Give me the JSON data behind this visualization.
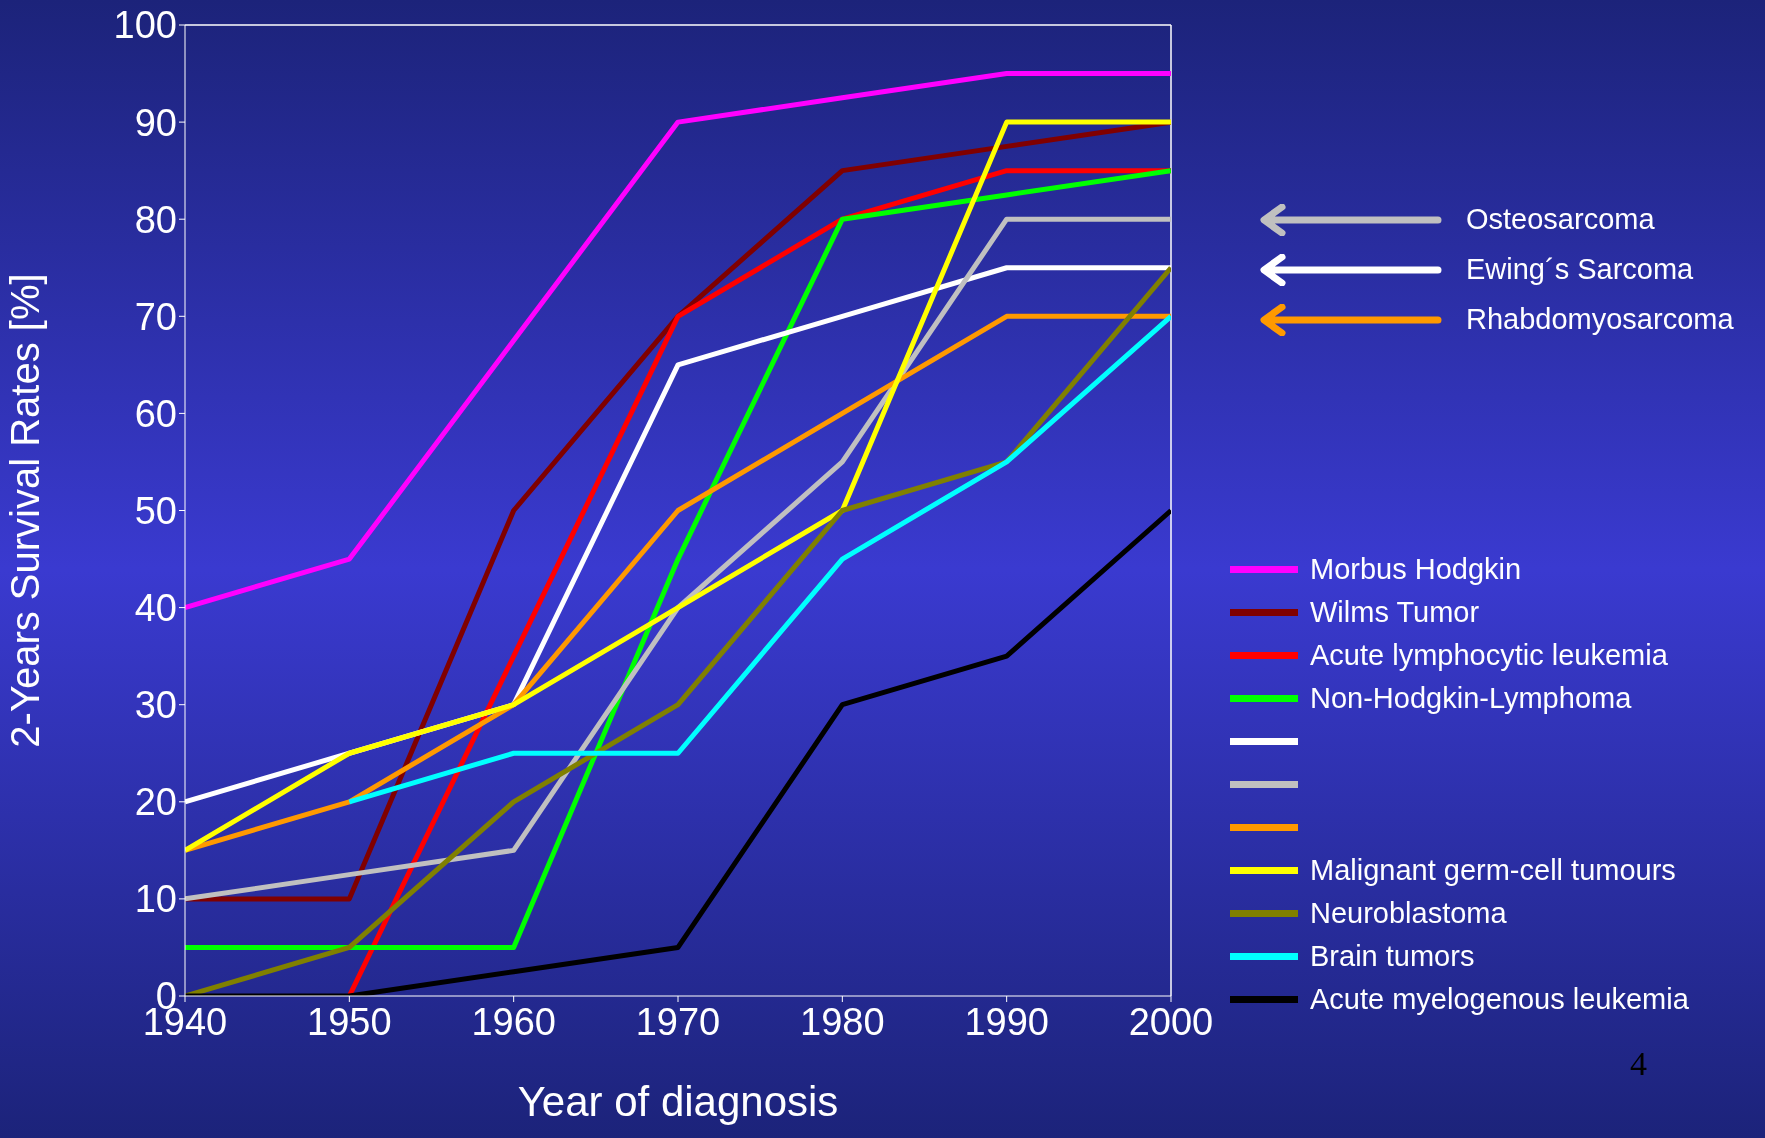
{
  "chart_data": {
    "type": "line",
    "xlabel": "Year of diagnosis",
    "ylabel": "2-Years Survival Rates [%]",
    "x": [
      1940,
      1950,
      1960,
      1970,
      1980,
      1990,
      2000
    ],
    "xlim": [
      1940,
      2000
    ],
    "xticks": [
      1940,
      1950,
      1960,
      1970,
      1980,
      1990,
      2000
    ],
    "ylim": [
      0,
      100
    ],
    "yticks": [
      0,
      10,
      20,
      30,
      40,
      50,
      60,
      70,
      80,
      90,
      100
    ],
    "legend": "right",
    "series": [
      {
        "name": "Morbus Hodgkin",
        "color": "#ff00ff",
        "values": [
          40,
          45,
          67.5,
          90,
          92.5,
          95,
          95
        ]
      },
      {
        "name": "Wilms Tumor",
        "color": "#800000",
        "values": [
          10,
          10,
          50,
          70,
          85,
          87.5,
          90
        ]
      },
      {
        "name": "Acute lymphocytic leukemia",
        "color": "#ff0000",
        "values": [
          null,
          0,
          35,
          70,
          80,
          85,
          85
        ]
      },
      {
        "name": "Non-Hodgkin-Lymphoma",
        "color": "#00ff00",
        "values": [
          5,
          5,
          5,
          45,
          80,
          82.5,
          85
        ]
      },
      {
        "color": "#ffffff",
        "values": [
          20,
          25,
          30,
          65,
          70,
          75,
          75
        ]
      },
      {
        "color": "#c0c0c0",
        "values": [
          10,
          12.5,
          15,
          40,
          55,
          80,
          80
        ]
      },
      {
        "color": "#ff9900",
        "values": [
          15,
          20,
          30,
          50,
          60,
          70,
          70
        ]
      },
      {
        "name": "Malignant germ-cell tumours",
        "color": "#ffff00",
        "values": [
          15,
          25,
          30,
          40,
          50,
          90,
          90
        ]
      },
      {
        "name": "Neuroblastoma",
        "color": "#808000",
        "values": [
          0,
          5,
          20,
          30,
          50,
          55,
          75
        ]
      },
      {
        "name": "Brain tumors",
        "color": "#00ffff",
        "values": [
          null,
          20,
          25,
          25,
          45,
          55,
          70
        ]
      },
      {
        "name": "Acute myelogenous leukemia",
        "color": "#000000",
        "values": [
          0,
          0,
          2.5,
          5,
          30,
          35,
          50
        ]
      }
    ],
    "annotations": [
      "Osteosarcoma",
      "Ewing´s Sarcoma",
      "Rhabdomyosarcoma",
      "4"
    ]
  }
}
